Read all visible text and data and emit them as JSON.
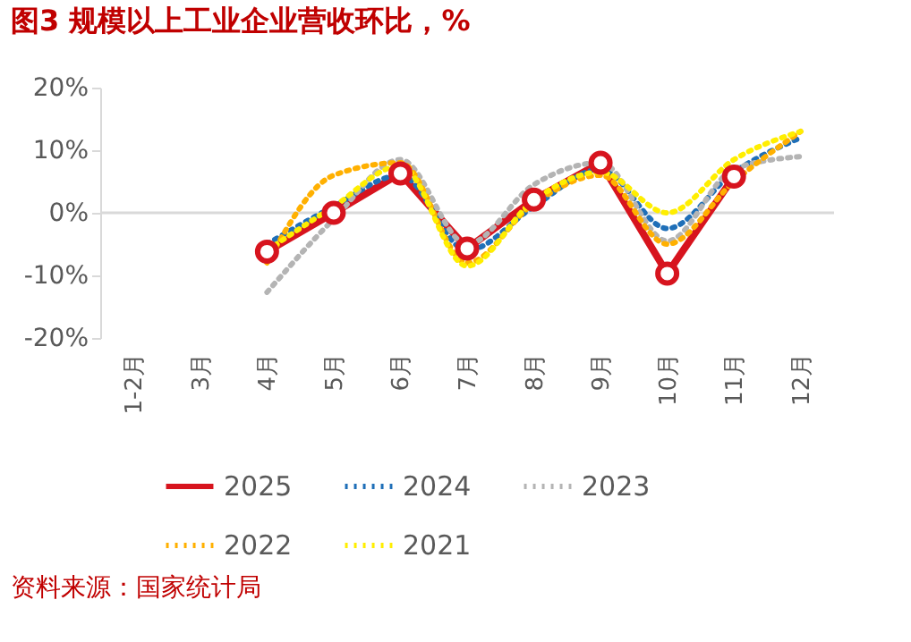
{
  "chart_data": {
    "type": "line",
    "title": "图3  规模以上工业企业营收环比，%",
    "categories": [
      "1-2月",
      "3月",
      "4月",
      "5月",
      "6月",
      "7月",
      "8月",
      "9月",
      "10月",
      "11月",
      "12月"
    ],
    "series": [
      {
        "name": "2025",
        "color": "#d7141e",
        "marker": "circle",
        "line_style": "solid",
        "values": [
          null,
          null,
          -6.2,
          0,
          6.3,
          -5.7,
          2.1,
          8,
          -9.7,
          5.8,
          null
        ]
      },
      {
        "name": "2024",
        "color": "#1f6fb8",
        "line_style": "dotted",
        "values": [
          null,
          null,
          -5,
          1,
          6,
          -6,
          1,
          7,
          -2.5,
          6.5,
          12
        ]
      },
      {
        "name": "2023",
        "color": "#b4b4b4",
        "line_style": "dotted",
        "values": [
          null,
          null,
          -12.7,
          -1,
          8.5,
          -5,
          4.5,
          8,
          -4.5,
          7,
          9
        ]
      },
      {
        "name": "2022",
        "color": "#ffb000",
        "line_style": "dotted",
        "values": [
          null,
          null,
          -8,
          6,
          8,
          -8,
          1.5,
          6,
          -5,
          5,
          13
        ]
      },
      {
        "name": "2021",
        "color": "#ffee00",
        "line_style": "dotted",
        "values": [
          null,
          null,
          -6,
          1,
          7.5,
          -8.5,
          2,
          6.5,
          0,
          8.5,
          13
        ]
      }
    ],
    "ylim": [
      -20,
      20
    ],
    "yticks": [
      {
        "value": -20,
        "label": "-20%"
      },
      {
        "value": -10,
        "label": "-10%"
      },
      {
        "value": 0,
        "label": "0%"
      },
      {
        "value": 10,
        "label": "10%"
      },
      {
        "value": 20,
        "label": "20%"
      }
    ],
    "grid": false,
    "legend": "bottom",
    "ref_lines": [
      {
        "axis": "y",
        "value": 0,
        "color": "#d9d9d9"
      }
    ],
    "annotations": [
      "资料来源：国家统计局"
    ]
  }
}
